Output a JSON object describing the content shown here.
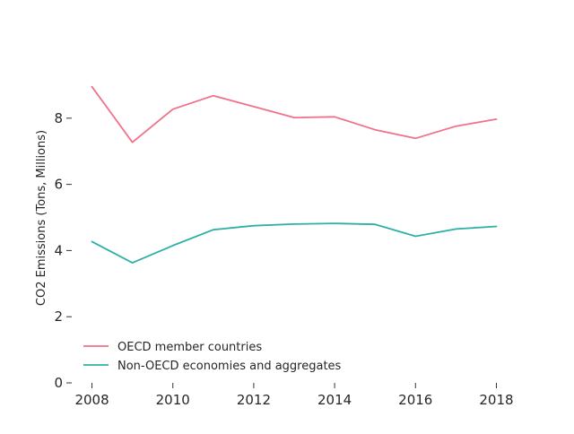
{
  "chart_data": {
    "type": "line",
    "title": "",
    "xlabel": "",
    "ylabel": "CO2 Emissions (Tons, Millions)",
    "x": [
      2008,
      2009,
      2010,
      2011,
      2012,
      2013,
      2014,
      2015,
      2016,
      2017,
      2018
    ],
    "xticks": [
      2008,
      2010,
      2012,
      2014,
      2016,
      2018
    ],
    "yticks": [
      0,
      2,
      4,
      6,
      8
    ],
    "xlim": [
      2007.5,
      2018.5
    ],
    "ylim": [
      0,
      10
    ],
    "grid": false,
    "legend_position": "lower-left",
    "series": [
      {
        "name": "OECD member countries",
        "color": "#f07189",
        "values": [
          8.95,
          7.27,
          8.27,
          8.68,
          8.35,
          8.02,
          8.04,
          7.65,
          7.39,
          7.76,
          7.97
        ]
      },
      {
        "name": "Non-OECD economies and aggregates",
        "color": "#2eb0a3",
        "values": [
          4.27,
          3.63,
          4.15,
          4.63,
          4.75,
          4.8,
          4.82,
          4.79,
          4.43,
          4.65,
          4.73
        ]
      }
    ]
  }
}
